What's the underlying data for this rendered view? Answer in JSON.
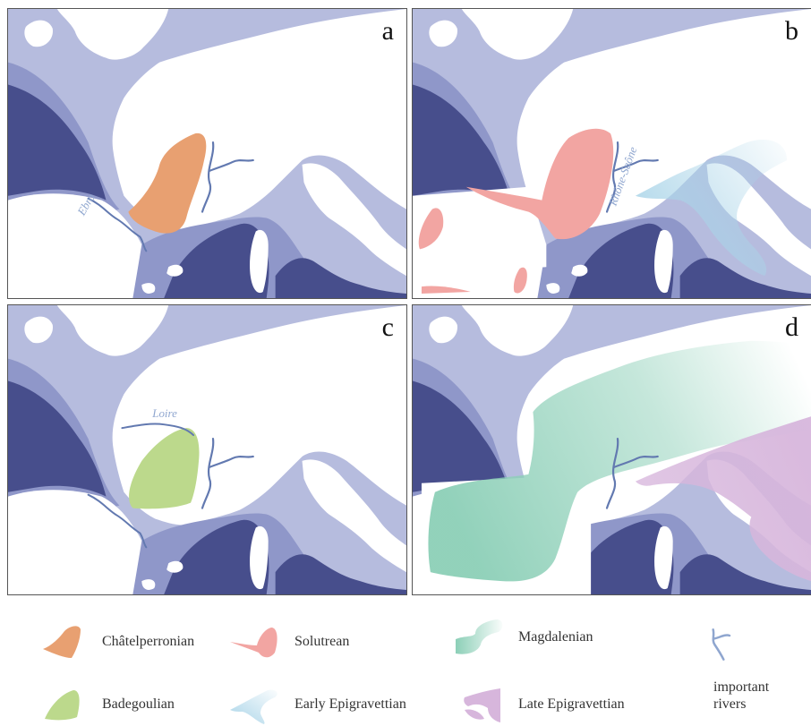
{
  "panels": [
    {
      "label": "a",
      "rivers": [
        {
          "name": "Ebro"
        }
      ]
    },
    {
      "label": "b",
      "rivers": [
        {
          "name": "Rhône-Saône"
        }
      ]
    },
    {
      "label": "c",
      "rivers": [
        {
          "name": "Loire"
        }
      ]
    },
    {
      "label": "d",
      "rivers": []
    }
  ],
  "colors": {
    "deep_sea": "#474e8c",
    "shelf": "#b6bcde",
    "mid_sea": "#8f97c9",
    "land": "#ffffff",
    "river": "#6279b0",
    "chatelperronian": "#e8a071",
    "solutrean": "#f2a5a2",
    "badegoulian": "#bcd98c",
    "early_epigravettian": "#a9d4e8",
    "magdalenian": "#8ccfb7",
    "late_epigravettian": "#d7b6dc"
  },
  "legend": {
    "chatelperronian": "Châtelperronian",
    "solutrean": "Solutrean",
    "magdalenian": "Magdalenian",
    "badegoulian": "Badegoulian",
    "early_epigravettian": "Early Epigravettian",
    "late_epigravettian": "Late Epigravettian",
    "rivers_line1": "important",
    "rivers_line2": "rivers"
  }
}
